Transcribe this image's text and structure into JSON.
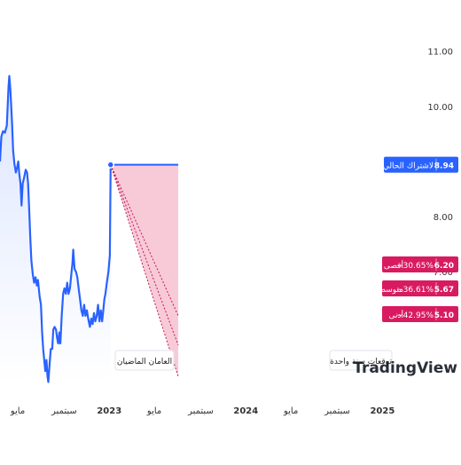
{
  "chart_data": {
    "type": "line",
    "y_ticks": [
      5.0,
      6.0,
      7.0,
      8.0,
      9.0,
      10.0,
      11.0
    ],
    "y_tick_labels": [
      "",
      "",
      "7.00",
      "8.00",
      "",
      "10.00",
      "11.00"
    ],
    "ylim": [
      4.3,
      11.3
    ],
    "x_ticks": [
      {
        "label": "مايو",
        "t": 0.33
      },
      {
        "label": "سبتمبر",
        "t": 0.67
      },
      {
        "label": "2023",
        "t": 1.0
      },
      {
        "label": "مايو",
        "t": 1.33
      },
      {
        "label": "سبتمبر",
        "t": 1.67
      },
      {
        "label": "2024",
        "t": 2.0
      },
      {
        "label": "مايو",
        "t": 2.33
      },
      {
        "label": "سبتمبر",
        "t": 2.67
      },
      {
        "label": "2025",
        "t": 3.0
      }
    ],
    "xlim": [
      0.2,
      3.4
    ],
    "history": [
      [
        0.2,
        9.0
      ],
      [
        0.21,
        9.45
      ],
      [
        0.222,
        9.55
      ],
      [
        0.236,
        9.52
      ],
      [
        0.25,
        9.65
      ],
      [
        0.262,
        10.35
      ],
      [
        0.268,
        10.55
      ],
      [
        0.276,
        10.3
      ],
      [
        0.288,
        9.7
      ],
      [
        0.296,
        9.2
      ],
      [
        0.306,
        8.95
      ],
      [
        0.316,
        8.8
      ],
      [
        0.326,
        8.9
      ],
      [
        0.334,
        9.0
      ],
      [
        0.34,
        8.8
      ],
      [
        0.35,
        8.6
      ],
      [
        0.358,
        8.2
      ],
      [
        0.366,
        8.6
      ],
      [
        0.376,
        8.7
      ],
      [
        0.388,
        8.85
      ],
      [
        0.398,
        8.8
      ],
      [
        0.406,
        8.6
      ],
      [
        0.414,
        8.1
      ],
      [
        0.422,
        7.6
      ],
      [
        0.43,
        7.2
      ],
      [
        0.44,
        6.95
      ],
      [
        0.45,
        6.8
      ],
      [
        0.46,
        6.9
      ],
      [
        0.47,
        6.75
      ],
      [
        0.478,
        6.85
      ],
      [
        0.49,
        6.55
      ],
      [
        0.5,
        6.4
      ],
      [
        0.508,
        5.9
      ],
      [
        0.516,
        5.6
      ],
      [
        0.524,
        5.4
      ],
      [
        0.532,
        5.2
      ],
      [
        0.54,
        5.4
      ],
      [
        0.548,
        5.1
      ],
      [
        0.554,
        5.0
      ],
      [
        0.562,
        5.3
      ],
      [
        0.572,
        5.6
      ],
      [
        0.582,
        5.6
      ],
      [
        0.59,
        5.95
      ],
      [
        0.6,
        6.0
      ],
      [
        0.61,
        5.95
      ],
      [
        0.618,
        5.8
      ],
      [
        0.626,
        5.7
      ],
      [
        0.634,
        5.9
      ],
      [
        0.642,
        5.7
      ],
      [
        0.652,
        6.2
      ],
      [
        0.662,
        6.6
      ],
      [
        0.672,
        6.7
      ],
      [
        0.682,
        6.6
      ],
      [
        0.692,
        6.8
      ],
      [
        0.702,
        6.6
      ],
      [
        0.712,
        6.7
      ],
      [
        0.722,
        6.95
      ],
      [
        0.73,
        7.15
      ],
      [
        0.736,
        7.4
      ],
      [
        0.746,
        7.05
      ],
      [
        0.756,
        7.0
      ],
      [
        0.766,
        6.9
      ],
      [
        0.776,
        6.7
      ],
      [
        0.786,
        6.5
      ],
      [
        0.796,
        6.3
      ],
      [
        0.806,
        6.2
      ],
      [
        0.816,
        6.4
      ],
      [
        0.826,
        6.2
      ],
      [
        0.836,
        6.3
      ],
      [
        0.846,
        6.15
      ],
      [
        0.858,
        6.0
      ],
      [
        0.868,
        6.15
      ],
      [
        0.878,
        6.05
      ],
      [
        0.888,
        6.25
      ],
      [
        0.898,
        6.1
      ],
      [
        0.908,
        6.2
      ],
      [
        0.918,
        6.4
      ],
      [
        0.928,
        6.1
      ],
      [
        0.938,
        6.3
      ],
      [
        0.948,
        6.1
      ],
      [
        0.956,
        6.3
      ],
      [
        0.964,
        6.5
      ],
      [
        0.972,
        6.6
      ],
      [
        0.982,
        6.8
      ],
      [
        0.994,
        7.0
      ],
      [
        1.004,
        7.3
      ],
      [
        1.01,
        8.94
      ]
    ],
    "forecast": {
      "current": 8.94,
      "high": 6.2,
      "average": 5.67,
      "low": 5.1,
      "x_end": 1.505
    },
    "labels": {
      "current_label": "لاشتراك الحالي",
      "current_value": "8.94",
      "high_label": "أقصى",
      "high_change": "−30.65%",
      "high_value": "6.20",
      "avg_label": "متوسط",
      "avg_change": "−36.61%",
      "avg_value": "5.67",
      "low_label": "أدنى",
      "low_change": "−42.95%",
      "low_value": "5.10",
      "past_box": "العامان الماضيان",
      "future_box": "توقعات سنة واحدة",
      "watermark": "TradingView"
    },
    "colors": {
      "line": "#2962ff",
      "area_top": "#dbe5ff",
      "area_bottom": "#ffffff",
      "forecast_fill": "#f8c7d6",
      "forecast_line": "#c2185b",
      "current_badge": "#2962ff",
      "forecast_badge": "#d81b60",
      "axis_text": "#333333"
    }
  }
}
